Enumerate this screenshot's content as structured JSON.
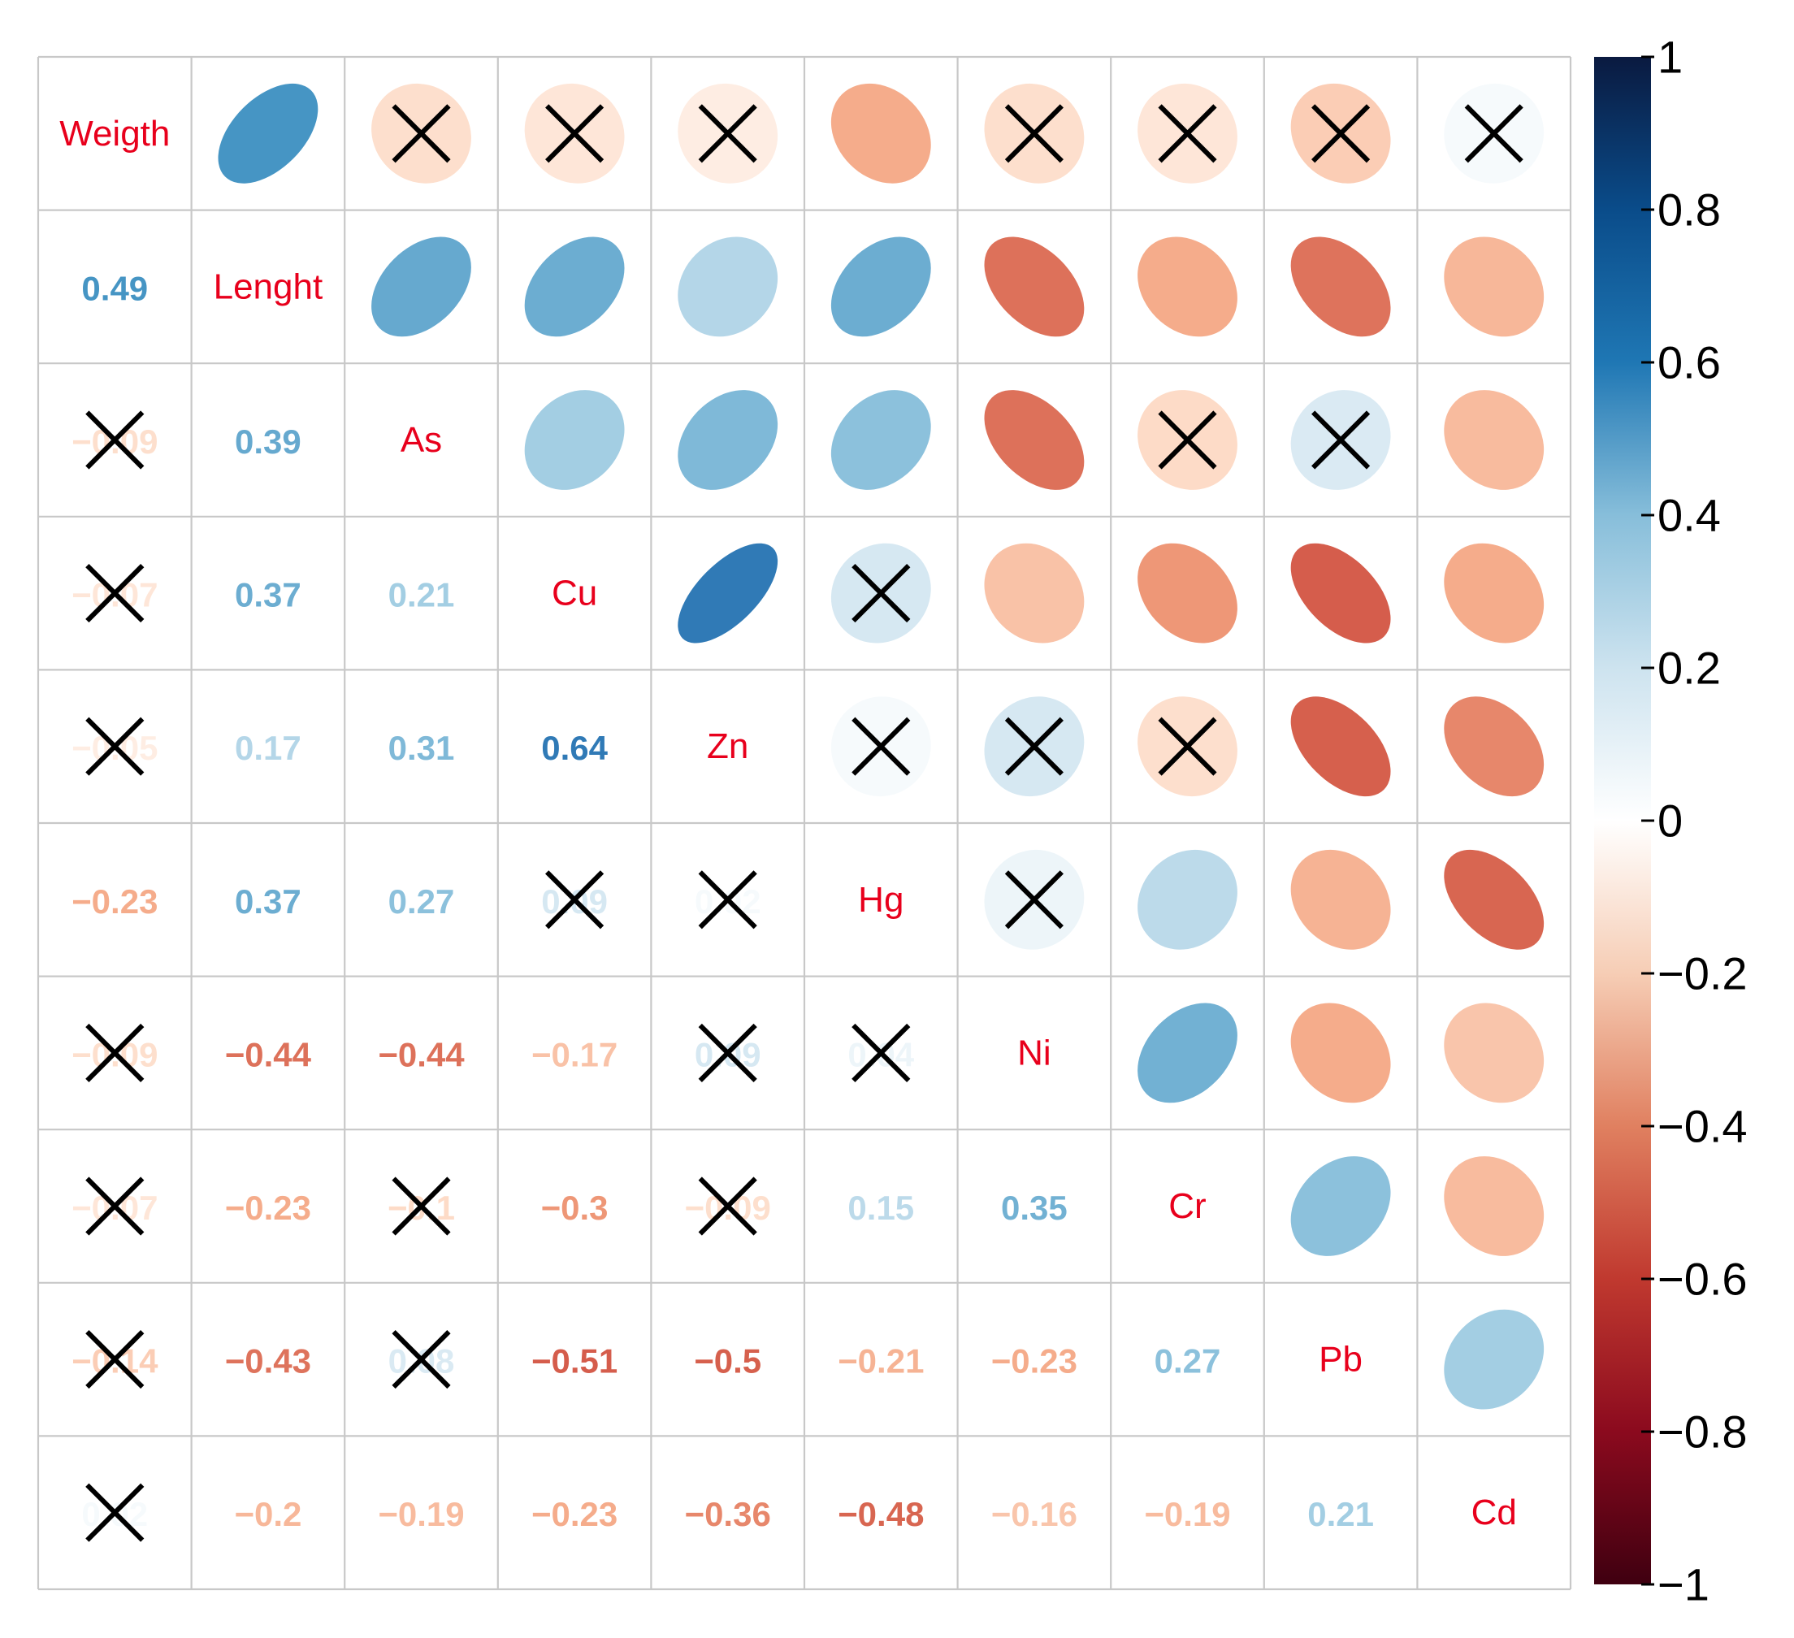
{
  "chart_data": {
    "type": "heatmap",
    "subtype": "correlation-matrix (upper: ellipse, lower: number, diag: label)",
    "variables": [
      "Weigth",
      "Lenght",
      "As",
      "Cu",
      "Zn",
      "Hg",
      "Ni",
      "Cr",
      "Pb",
      "Cd"
    ],
    "matrix": [
      [
        1,
        0.49,
        -0.09,
        -0.07,
        -0.05,
        -0.23,
        -0.09,
        -0.07,
        -0.14,
        0.02
      ],
      [
        0.49,
        1,
        0.39,
        0.37,
        0.17,
        0.37,
        -0.44,
        -0.23,
        -0.43,
        -0.2
      ],
      [
        -0.09,
        0.39,
        1,
        0.21,
        0.31,
        0.27,
        -0.44,
        -0.1,
        0.08,
        -0.19
      ],
      [
        -0.07,
        0.37,
        0.21,
        1,
        0.64,
        0.09,
        -0.17,
        -0.3,
        -0.51,
        -0.23
      ],
      [
        -0.05,
        0.17,
        0.31,
        0.64,
        1,
        0.02,
        0.09,
        -0.09,
        -0.5,
        -0.36
      ],
      [
        -0.23,
        0.37,
        0.27,
        0.09,
        0.02,
        1,
        0.04,
        0.15,
        -0.21,
        -0.48
      ],
      [
        -0.09,
        -0.44,
        -0.44,
        -0.17,
        0.09,
        0.04,
        1,
        0.35,
        -0.23,
        -0.16
      ],
      [
        -0.07,
        -0.23,
        -0.1,
        -0.3,
        -0.09,
        0.15,
        0.35,
        1,
        0.27,
        -0.19
      ],
      [
        -0.14,
        -0.43,
        0.08,
        -0.51,
        -0.5,
        -0.21,
        -0.23,
        0.27,
        1,
        0.21
      ],
      [
        0.02,
        -0.2,
        -0.19,
        -0.23,
        -0.36,
        -0.48,
        -0.16,
        -0.19,
        0.21,
        1
      ]
    ],
    "lower_labels": [
      [
        "",
        "",
        "",
        "",
        "",
        "",
        "",
        "",
        "",
        ""
      ],
      [
        "0.49",
        "",
        "",
        "",
        "",
        "",
        "",
        "",
        "",
        ""
      ],
      [
        "−0.09",
        "0.39",
        "",
        "",
        "",
        "",
        "",
        "",
        "",
        ""
      ],
      [
        "−0.07",
        "0.37",
        "0.21",
        "",
        "",
        "",
        "",
        "",
        "",
        ""
      ],
      [
        "−0.05",
        "0.17",
        "0.31",
        "0.64",
        "",
        "",
        "",
        "",
        "",
        ""
      ],
      [
        "−0.23",
        "0.37",
        "0.27",
        "0.09",
        "0.02",
        "",
        "",
        "",
        "",
        ""
      ],
      [
        "−0.09",
        "−0.44",
        "−0.44",
        "−0.17",
        "0.09",
        "0.04",
        "",
        "",
        "",
        ""
      ],
      [
        "−0.07",
        "−0.23",
        "−0.1",
        "−0.3",
        "−0.09",
        "0.15",
        "0.35",
        "",
        "",
        ""
      ],
      [
        "−0.14",
        "−0.43",
        "0.08",
        "−0.51",
        "−0.5",
        "−0.21",
        "−0.23",
        "0.27",
        "",
        ""
      ],
      [
        "0.02",
        "−0.2",
        "−0.19",
        "−0.23",
        "−0.36",
        "−0.48",
        "−0.16",
        "−0.19",
        "0.21",
        ""
      ]
    ],
    "not_significant": [
      [
        0,
        2
      ],
      [
        0,
        3
      ],
      [
        0,
        4
      ],
      [
        0,
        6
      ],
      [
        0,
        7
      ],
      [
        0,
        8
      ],
      [
        0,
        9
      ],
      [
        2,
        7
      ],
      [
        2,
        8
      ],
      [
        3,
        5
      ],
      [
        4,
        5
      ],
      [
        4,
        6
      ],
      [
        4,
        7
      ],
      [
        5,
        6
      ]
    ],
    "color_scale": {
      "range": [
        -1,
        1
      ],
      "stops": [
        {
          "v": -1.0,
          "color": "#67001F"
        },
        {
          "v": -0.75,
          "color": "#B2182B"
        },
        {
          "v": -0.5,
          "color": "#D6604D"
        },
        {
          "v": -0.25,
          "color": "#F4A582"
        },
        {
          "v": -0.1,
          "color": "#FDDBC7"
        },
        {
          "v": 0.0,
          "color": "#FFFFFF"
        },
        {
          "v": 0.1,
          "color": "#D1E5F0"
        },
        {
          "v": 0.25,
          "color": "#92C5DE"
        },
        {
          "v": 0.5,
          "color": "#4393C3"
        },
        {
          "v": 0.75,
          "color": "#2166AC"
        },
        {
          "v": 1.0,
          "color": "#053061"
        }
      ],
      "colorbar_stops": [
        {
          "v": -1.0,
          "color": "#3F0010"
        },
        {
          "v": -0.8,
          "color": "#8B0A1E"
        },
        {
          "v": -0.6,
          "color": "#C0392F"
        },
        {
          "v": -0.4,
          "color": "#E08060"
        },
        {
          "v": -0.2,
          "color": "#F6CDB5"
        },
        {
          "v": 0.0,
          "color": "#FFFFFF"
        },
        {
          "v": 0.2,
          "color": "#CDE3EF"
        },
        {
          "v": 0.4,
          "color": "#87BEDA"
        },
        {
          "v": 0.6,
          "color": "#1F77B4"
        },
        {
          "v": 0.8,
          "color": "#0A4C8A"
        },
        {
          "v": 1.0,
          "color": "#0A1A40"
        }
      ]
    },
    "colorbar_ticks": [
      "1",
      "0.8",
      "0.6",
      "0.4",
      "0.2",
      "0",
      "−0.2",
      "−0.4",
      "−0.6",
      "−0.8",
      "−1"
    ],
    "colorbar_tick_values": [
      1,
      0.8,
      0.6,
      0.4,
      0.2,
      0,
      -0.2,
      -0.4,
      -0.6,
      -0.8,
      -1
    ],
    "label_color": "#E8001C",
    "cross_color": "#000000",
    "grid_color": "#C8C8C8"
  }
}
